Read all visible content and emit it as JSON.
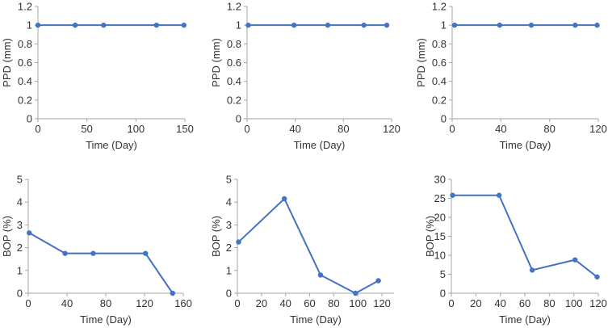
{
  "series_color": "#4472C4",
  "axis_color": "#a6a6a6",
  "chart_data": [
    {
      "type": "line",
      "title": "",
      "xlabel": "Time (Day)",
      "ylabel": "PPD (mm)",
      "xlim": [
        0,
        150
      ],
      "ylim": [
        0,
        1.2
      ],
      "xticks": [
        "0",
        "50",
        "100",
        "150"
      ],
      "yticks": [
        "0",
        "0.2",
        "0.4",
        "0.6",
        "0.8",
        "1",
        "1.2"
      ],
      "x": [
        0,
        38,
        67,
        121,
        149
      ],
      "y": [
        1,
        1,
        1,
        1,
        1
      ],
      "grid": false
    },
    {
      "type": "line",
      "title": "",
      "xlabel": "Time (Day)",
      "ylabel": "PPD (mm)",
      "xlim": [
        0,
        120
      ],
      "ylim": [
        0,
        1.2
      ],
      "xticks": [
        "0",
        "40",
        "80",
        "120"
      ],
      "yticks": [
        "0",
        "0.2",
        "0.4",
        "0.6",
        "0.8",
        "1",
        "1.2"
      ],
      "x": [
        1,
        39,
        67,
        97,
        116
      ],
      "y": [
        1,
        1,
        1,
        1,
        1
      ],
      "grid": false
    },
    {
      "type": "line",
      "title": "",
      "xlabel": "Time (Day)",
      "ylabel": "PPD (mm)",
      "xlim": [
        0,
        120
      ],
      "ylim": [
        0,
        1.2
      ],
      "xticks": [
        "0",
        "40",
        "80",
        "120"
      ],
      "yticks": [
        "0",
        "0.2",
        "0.4",
        "0.6",
        "0.8",
        "1",
        "1.2"
      ],
      "x": [
        2,
        39,
        65,
        101,
        119
      ],
      "y": [
        1,
        1,
        1,
        1,
        1
      ],
      "grid": false
    },
    {
      "type": "line",
      "title": "",
      "xlabel": "Time (Day)",
      "ylabel": "BOP (%)",
      "xlim": [
        0,
        160
      ],
      "ylim": [
        0,
        5
      ],
      "xticks": [
        "0",
        "40",
        "80",
        "120",
        "160"
      ],
      "yticks": [
        "0",
        "1",
        "2",
        "3",
        "4",
        "5"
      ],
      "x": [
        1,
        38,
        67,
        121,
        149
      ],
      "y": [
        2.65,
        1.75,
        1.75,
        1.75,
        0
      ],
      "grid": false
    },
    {
      "type": "line",
      "title": "",
      "xlabel": "Time (Day)",
      "ylabel": "BOP (%)",
      "xlim": [
        0,
        130
      ],
      "ylim": [
        0,
        5
      ],
      "xticks": [
        "0",
        "20",
        "40",
        "60",
        "80",
        "100",
        "120"
      ],
      "yticks": [
        "0",
        "1",
        "2",
        "3",
        "4",
        "5"
      ],
      "x": [
        1,
        39,
        69,
        98,
        117
      ],
      "y": [
        2.25,
        4.15,
        0.8,
        0,
        0.55
      ],
      "grid": false
    },
    {
      "type": "line",
      "title": "",
      "xlabel": "Time (Day)",
      "ylabel": "BOP (%)",
      "xlim": [
        0,
        120
      ],
      "ylim": [
        0,
        30
      ],
      "xticks": [
        "0",
        "20",
        "40",
        "60",
        "80",
        "100",
        "120"
      ],
      "yticks": [
        "0",
        "5",
        "10",
        "15",
        "20",
        "25",
        "30"
      ],
      "x": [
        1,
        39,
        66,
        101,
        119
      ],
      "y": [
        25.8,
        25.8,
        6.1,
        8.8,
        4.3
      ],
      "grid": false
    }
  ]
}
